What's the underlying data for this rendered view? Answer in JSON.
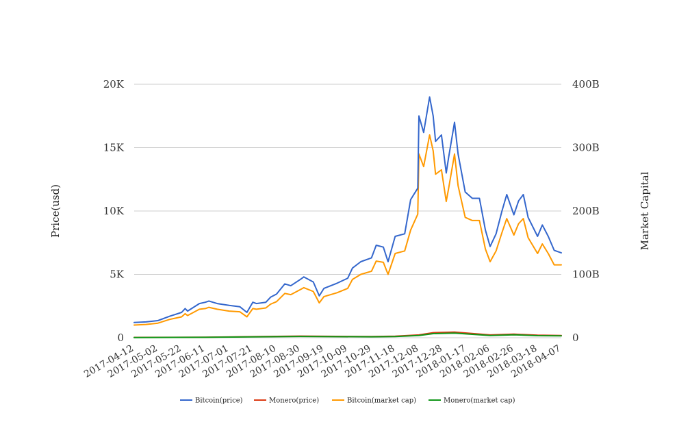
{
  "chart_data": {
    "type": "line",
    "title": "",
    "ylabel": "Price(usd)",
    "y2label": "Market Capital",
    "ylim": [
      0,
      20000
    ],
    "y2lim": [
      0,
      400
    ],
    "yticks": [
      {
        "value": 0,
        "label": "0"
      },
      {
        "value": 5000,
        "label": "5K"
      },
      {
        "value": 10000,
        "label": "10K"
      },
      {
        "value": 15000,
        "label": "15K"
      },
      {
        "value": 20000,
        "label": "20K"
      }
    ],
    "y2ticks": [
      {
        "value": 0,
        "label": "0"
      },
      {
        "value": 100,
        "label": "100B"
      },
      {
        "value": 200,
        "label": "200B"
      },
      {
        "value": 300,
        "label": "300B"
      },
      {
        "value": 400,
        "label": "400B"
      }
    ],
    "xlim": [
      "2017-04-12",
      "2018-04-07"
    ],
    "xticks": [
      "2017-04-12",
      "2017-05-02",
      "2017-05-22",
      "2017-06-11",
      "2017-07-01",
      "2017-07-21",
      "2017-08-10",
      "2017-08-30",
      "2017-09-19",
      "2017-10-09",
      "2017-10-29",
      "2017-11-18",
      "2017-12-08",
      "2017-12-28",
      "2018-01-17",
      "2018-02-06",
      "2018-02-26",
      "2018-03-18",
      "2018-04-07"
    ],
    "grid": true,
    "legend_position": "bottom",
    "series": [
      {
        "name": "Bitcoin(price)",
        "axis": "left",
        "color": "#3366cc",
        "x": [
          "2017-04-12",
          "2017-04-22",
          "2017-05-02",
          "2017-05-12",
          "2017-05-22",
          "2017-05-25",
          "2017-05-27",
          "2017-06-06",
          "2017-06-11",
          "2017-06-14",
          "2017-06-21",
          "2017-07-01",
          "2017-07-10",
          "2017-07-16",
          "2017-07-21",
          "2017-07-24",
          "2017-08-01",
          "2017-08-05",
          "2017-08-10",
          "2017-08-17",
          "2017-08-22",
          "2017-08-30",
          "2017-09-02",
          "2017-09-10",
          "2017-09-15",
          "2017-09-19",
          "2017-09-30",
          "2017-10-09",
          "2017-10-13",
          "2017-10-20",
          "2017-10-29",
          "2017-11-02",
          "2017-11-08",
          "2017-11-12",
          "2017-11-18",
          "2017-11-26",
          "2017-12-01",
          "2017-12-07",
          "2017-12-08",
          "2017-12-12",
          "2017-12-17",
          "2017-12-20",
          "2017-12-22",
          "2017-12-27",
          "2017-12-31",
          "2018-01-02",
          "2018-01-07",
          "2018-01-10",
          "2018-01-16",
          "2018-01-22",
          "2018-01-28",
          "2018-02-02",
          "2018-02-06",
          "2018-02-11",
          "2018-02-16",
          "2018-02-20",
          "2018-02-26",
          "2018-03-02",
          "2018-03-06",
          "2018-03-10",
          "2018-03-18",
          "2018-03-22",
          "2018-03-27",
          "2018-04-01",
          "2018-04-07"
        ],
        "values": [
          1200,
          1250,
          1350,
          1700,
          2000,
          2300,
          2100,
          2700,
          2800,
          2900,
          2700,
          2550,
          2450,
          2000,
          2800,
          2700,
          2800,
          3200,
          3450,
          4250,
          4100,
          4600,
          4800,
          4400,
          3300,
          3900,
          4300,
          4700,
          5500,
          6000,
          6300,
          7300,
          7150,
          6000,
          8000,
          8200,
          10900,
          11800,
          17500,
          16200,
          19000,
          17500,
          15500,
          16000,
          13000,
          14200,
          17000,
          14500,
          11500,
          11000,
          11000,
          8500,
          7200,
          8200,
          10000,
          11300,
          9700,
          10800,
          11300,
          9500,
          8000,
          8900,
          8000,
          6900,
          6700
        ]
      },
      {
        "name": "Monero(price)",
        "axis": "left",
        "color": "#dc3912",
        "x": [
          "2017-04-12",
          "2017-06-11",
          "2017-08-30",
          "2017-10-29",
          "2017-11-18",
          "2017-12-08",
          "2017-12-20",
          "2018-01-07",
          "2018-02-06",
          "2018-02-26",
          "2018-03-18",
          "2018-04-07"
        ],
        "values": [
          25,
          45,
          130,
          90,
          120,
          220,
          400,
          450,
          220,
          280,
          200,
          180
        ]
      },
      {
        "name": "Bitcoin(market cap)",
        "axis": "right",
        "color": "#ff9900",
        "x": [
          "2017-04-12",
          "2017-04-22",
          "2017-05-02",
          "2017-05-12",
          "2017-05-22",
          "2017-05-25",
          "2017-05-27",
          "2017-06-06",
          "2017-06-11",
          "2017-06-14",
          "2017-06-21",
          "2017-07-01",
          "2017-07-10",
          "2017-07-16",
          "2017-07-21",
          "2017-07-24",
          "2017-08-01",
          "2017-08-05",
          "2017-08-10",
          "2017-08-17",
          "2017-08-22",
          "2017-08-30",
          "2017-09-02",
          "2017-09-10",
          "2017-09-15",
          "2017-09-19",
          "2017-09-30",
          "2017-10-09",
          "2017-10-13",
          "2017-10-20",
          "2017-10-29",
          "2017-11-02",
          "2017-11-08",
          "2017-11-12",
          "2017-11-18",
          "2017-11-26",
          "2017-12-01",
          "2017-12-07",
          "2017-12-08",
          "2017-12-12",
          "2017-12-17",
          "2017-12-20",
          "2017-12-22",
          "2017-12-27",
          "2017-12-31",
          "2018-01-02",
          "2018-01-07",
          "2018-01-10",
          "2018-01-16",
          "2018-01-22",
          "2018-01-28",
          "2018-02-02",
          "2018-02-06",
          "2018-02-11",
          "2018-02-16",
          "2018-02-20",
          "2018-02-26",
          "2018-03-02",
          "2018-03-06",
          "2018-03-10",
          "2018-03-18",
          "2018-03-22",
          "2018-03-27",
          "2018-04-01",
          "2018-04-07"
        ],
        "values": [
          20,
          21,
          23,
          29,
          33,
          38,
          35,
          45,
          46,
          48,
          45,
          42,
          41,
          33,
          46,
          45,
          47,
          53,
          57,
          70,
          68,
          76,
          79,
          73,
          55,
          65,
          71,
          78,
          92,
          100,
          105,
          121,
          119,
          100,
          133,
          137,
          170,
          195,
          290,
          270,
          320,
          295,
          258,
          265,
          215,
          235,
          290,
          240,
          190,
          185,
          185,
          140,
          120,
          137,
          166,
          188,
          162,
          180,
          188,
          158,
          133,
          148,
          133,
          115,
          115
        ]
      },
      {
        "name": "Monero(market cap)",
        "axis": "right",
        "color": "#109618",
        "x": [
          "2017-04-12",
          "2017-06-11",
          "2017-08-30",
          "2017-10-29",
          "2017-11-18",
          "2017-12-08",
          "2017-12-20",
          "2018-01-07",
          "2018-02-06",
          "2018-02-26",
          "2018-03-18",
          "2018-04-07"
        ],
        "values": [
          0.3,
          0.7,
          2.0,
          1.5,
          1.9,
          3.5,
          6.5,
          7.2,
          3.5,
          4.6,
          3.2,
          2.9
        ]
      }
    ]
  }
}
